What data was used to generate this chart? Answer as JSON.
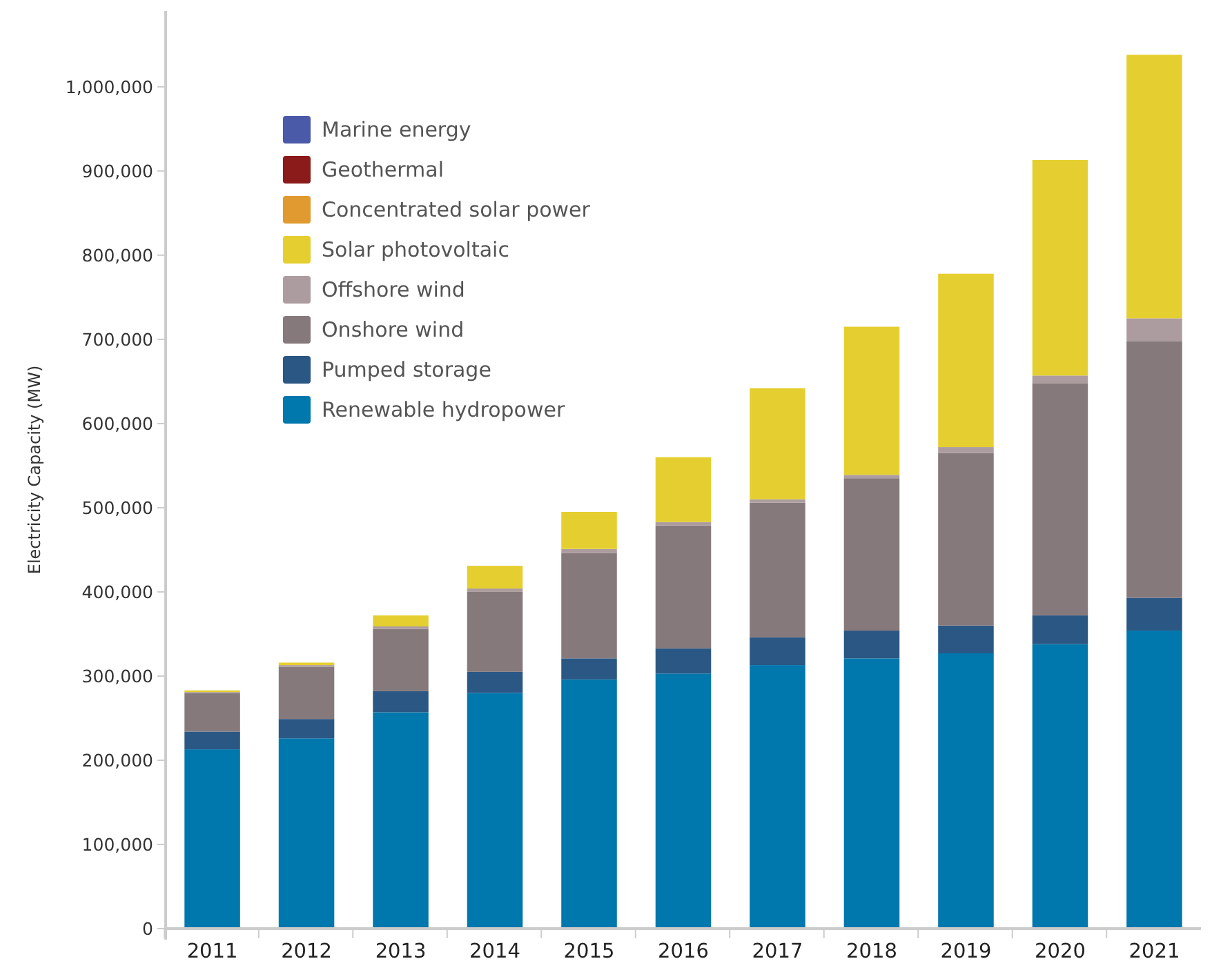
{
  "chart_data": {
    "type": "bar",
    "stacked": true,
    "ylabel": "Electricity Capacity (MW)",
    "categories": [
      "2011",
      "2012",
      "2013",
      "2014",
      "2015",
      "2016",
      "2017",
      "2018",
      "2019",
      "2020",
      "2021"
    ],
    "series": [
      {
        "name": "Renewable hydropower",
        "color": "#0077ad",
        "values": [
          213000,
          226000,
          257000,
          280000,
          296000,
          303000,
          313000,
          321000,
          327000,
          338000,
          354000
        ]
      },
      {
        "name": "Pumped storage",
        "color": "#2b5784",
        "values": [
          21000,
          23000,
          25000,
          25000,
          25000,
          30000,
          33000,
          33000,
          33000,
          34000,
          39000
        ]
      },
      {
        "name": "Onshore wind",
        "color": "#86797c",
        "values": [
          46000,
          62000,
          74000,
          95000,
          125000,
          146000,
          160000,
          181000,
          205000,
          276000,
          305000
        ]
      },
      {
        "name": "Offshore wind",
        "color": "#ad9c9f",
        "values": [
          1000,
          2000,
          3000,
          4000,
          5000,
          4000,
          4000,
          4000,
          7000,
          9000,
          27000
        ]
      },
      {
        "name": "Solar photovoltaic",
        "color": "#e5cf30",
        "values": [
          2000,
          3000,
          13000,
          27000,
          44000,
          77000,
          132000,
          176000,
          206000,
          256000,
          313000
        ]
      },
      {
        "name": "Concentrated solar power",
        "color": "#e09a30",
        "values": [
          null,
          null,
          null,
          null,
          null,
          null,
          null,
          null,
          null,
          null,
          null
        ]
      },
      {
        "name": "Geothermal",
        "color": "#8b1a1a",
        "values": [
          null,
          null,
          null,
          null,
          null,
          null,
          null,
          null,
          null,
          null,
          null
        ]
      },
      {
        "name": "Marine energy",
        "color": "#4a5aa8",
        "values": [
          null,
          null,
          null,
          null,
          null,
          null,
          null,
          null,
          null,
          null,
          null
        ]
      }
    ],
    "ylim": [
      0,
      1090000
    ],
    "yticks": [
      0,
      {
        "value": 100000,
        "label": "100,000"
      },
      {
        "value": 200000,
        "label": "200,000"
      },
      {
        "value": 300000,
        "label": "300,000"
      },
      {
        "value": 400000,
        "label": "400,000"
      },
      {
        "value": 500000,
        "label": "500,000"
      },
      {
        "value": 600000,
        "label": "600,000"
      },
      {
        "value": 700000,
        "label": "700,000"
      },
      {
        "value": 800000,
        "label": "800,000"
      },
      {
        "value": 900000,
        "label": "900,000"
      },
      {
        "value": 1000000,
        "label": "1,000,000"
      }
    ],
    "grid": false,
    "legend": "top left"
  }
}
